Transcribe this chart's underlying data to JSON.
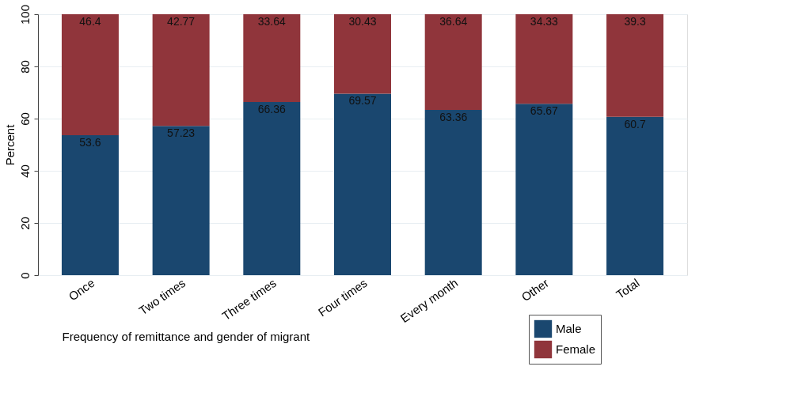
{
  "chart_data": {
    "type": "bar",
    "stacked": true,
    "xlabel": "Frequency of remittance and gender of migrant",
    "ylabel": "Percent",
    "categories": [
      "Once",
      "Two times",
      "Three times",
      "Four times",
      "Every month",
      "Other",
      "Total"
    ],
    "series": [
      {
        "name": "Male",
        "color": "#1a476f",
        "values": [
          53.6,
          57.23,
          66.36,
          69.57,
          63.36,
          65.67,
          60.7
        ]
      },
      {
        "name": "Female",
        "color": "#90353b",
        "values": [
          46.4,
          42.77,
          33.64,
          30.43,
          36.64,
          34.33,
          39.3
        ]
      }
    ],
    "ylim": [
      0,
      100
    ],
    "yticks": [
      0,
      20,
      40,
      60,
      80,
      100
    ],
    "grid": "y",
    "legend": "bottom right",
    "data_labels": true
  }
}
